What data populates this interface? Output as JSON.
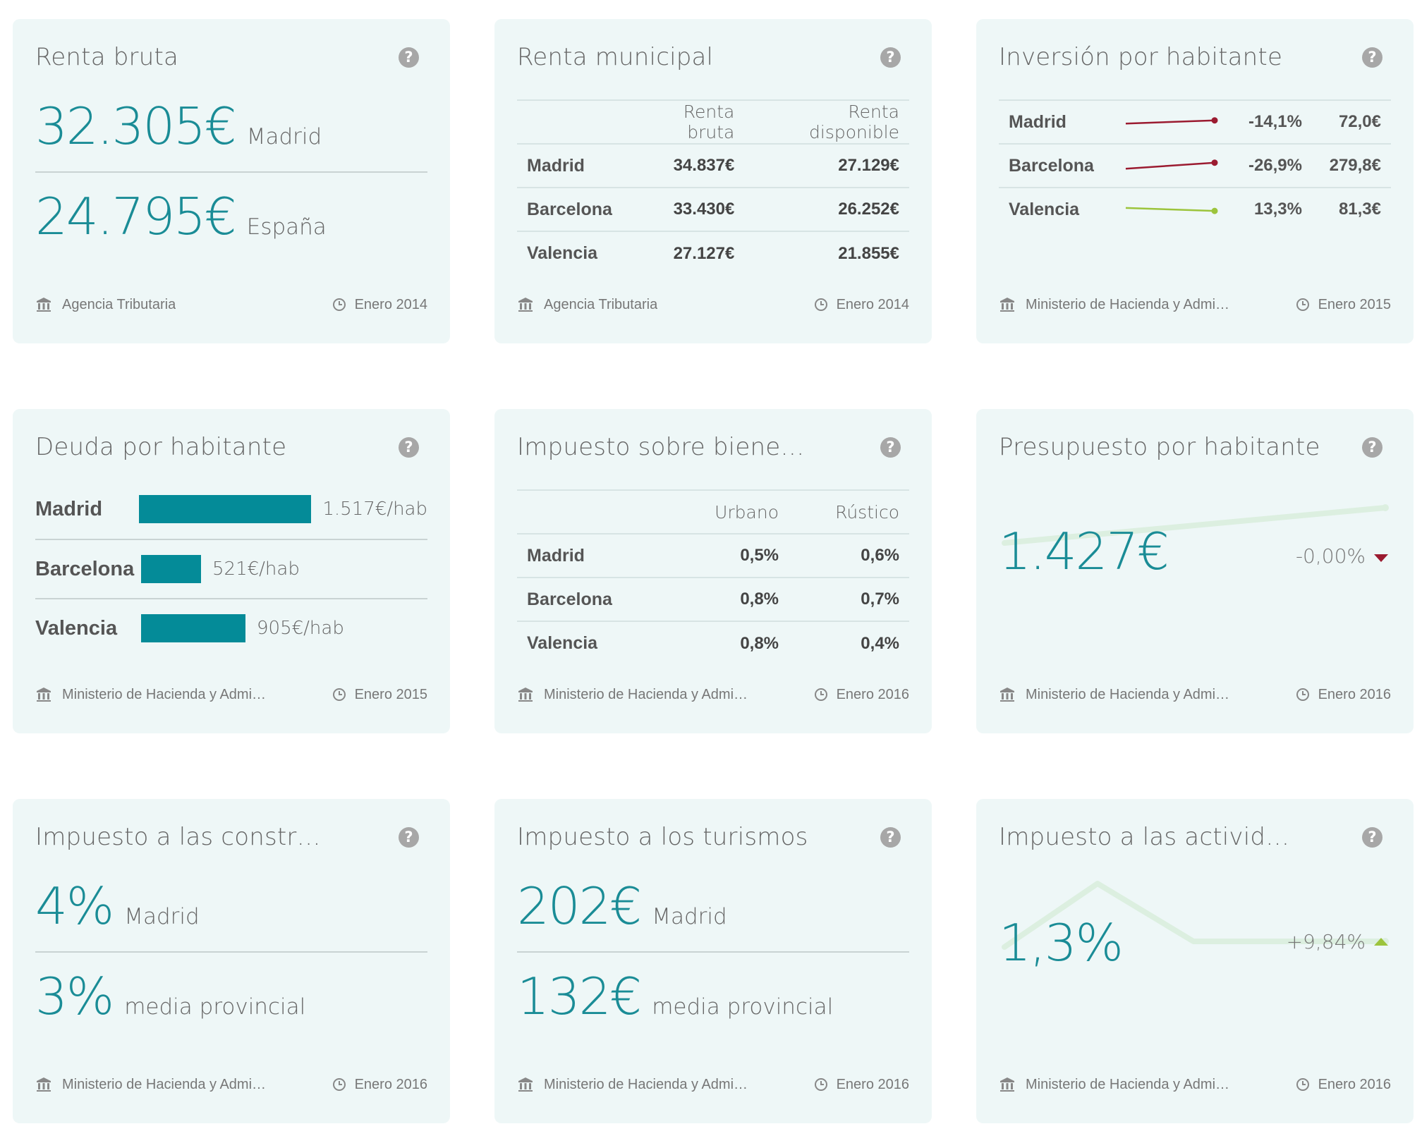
{
  "cards": {
    "renta_bruta": {
      "title": "Renta bruta",
      "primary": {
        "value": "32.305€",
        "label": "Madrid"
      },
      "secondary": {
        "value": "24.795€",
        "label": "España"
      },
      "source": "Agencia Tributaria",
      "date": "Enero 2014"
    },
    "renta_municipal": {
      "title": "Renta municipal",
      "columns": [
        "Renta bruta",
        "Renta disponible"
      ],
      "rows": [
        {
          "city": "Madrid",
          "a": "34.837€",
          "b": "27.129€"
        },
        {
          "city": "Barcelona",
          "a": "33.430€",
          "b": "26.252€"
        },
        {
          "city": "Valencia",
          "a": "27.127€",
          "b": "21.855€"
        }
      ],
      "source": "Agencia Tributaria",
      "date": "Enero 2014"
    },
    "inversion": {
      "title": "Inversión por habitante",
      "rows": [
        {
          "city": "Madrid",
          "pct": "-14,1%",
          "value": "72,0€",
          "trend_color": "#9b1b30",
          "trend": -14.1
        },
        {
          "city": "Barcelona",
          "pct": "-26,9%",
          "value": "279,8€",
          "trend_color": "#9b1b30",
          "trend": -26.9
        },
        {
          "city": "Valencia",
          "pct": "13,3%",
          "value": "81,3€",
          "trend_color": "#9cc43c",
          "trend": 13.3
        }
      ],
      "source": "Ministerio de Hacienda y Administraciones Públicas",
      "date": "Enero 2015"
    },
    "deuda": {
      "title": "Deuda por habitante",
      "rows": [
        {
          "city": "Madrid",
          "label": "1.517€/hab",
          "value": 1517
        },
        {
          "city": "Barcelona",
          "label": "521€/hab",
          "value": 521
        },
        {
          "city": "Valencia",
          "label": "905€/hab",
          "value": 905
        }
      ],
      "bar_color": "#048b98",
      "source": "Ministerio de Hacienda y Administraciones Públicas",
      "date": "Enero 2015"
    },
    "ibi": {
      "title": "Impuesto sobre bienes inmuebles",
      "columns": [
        "Urbano",
        "Rústico"
      ],
      "rows": [
        {
          "city": "Madrid",
          "a": "0,5%",
          "b": "0,6%"
        },
        {
          "city": "Barcelona",
          "a": "0,8%",
          "b": "0,7%"
        },
        {
          "city": "Valencia",
          "a": "0,8%",
          "b": "0,4%"
        }
      ],
      "source": "Ministerio de Hacienda y Administraciones Públicas",
      "date": "Enero 2016"
    },
    "presupuesto": {
      "title": "Presupuesto por habitante",
      "value": "1.427€",
      "change": "-0,00%",
      "change_color": "#9b1b30",
      "source": "Ministerio de Hacienda y Administraciones Públicas",
      "date": "Enero 2016"
    },
    "construcciones": {
      "title": "Impuesto a las construcciones, instalaciones y obras",
      "primary": {
        "value": "4%",
        "label": "Madrid"
      },
      "secondary": {
        "value": "3%",
        "label": "media provincial"
      },
      "source": "Ministerio de Hacienda y Administraciones Públicas",
      "date": "Enero 2016"
    },
    "turismos": {
      "title": "Impuesto a los turismos",
      "primary": {
        "value": "202€",
        "label": "Madrid"
      },
      "secondary": {
        "value": "132€",
        "label": "media provincial"
      },
      "source": "Ministerio de Hacienda y Administraciones Públicas",
      "date": "Enero 2016"
    },
    "actividades": {
      "title": "Impuesto a las actividades económicas",
      "value": "1,3%",
      "change": "+9,84%",
      "change_color": "#9cc43c",
      "source": "Ministerio de Hacienda y Administraciones Públicas",
      "date": "Enero 2016"
    }
  },
  "colors": {
    "accent": "#1a8c96",
    "card_bg": "#eef7f7",
    "negative": "#9b1b30",
    "positive": "#9cc43c",
    "sparkline_bg": "#dcefe0"
  }
}
